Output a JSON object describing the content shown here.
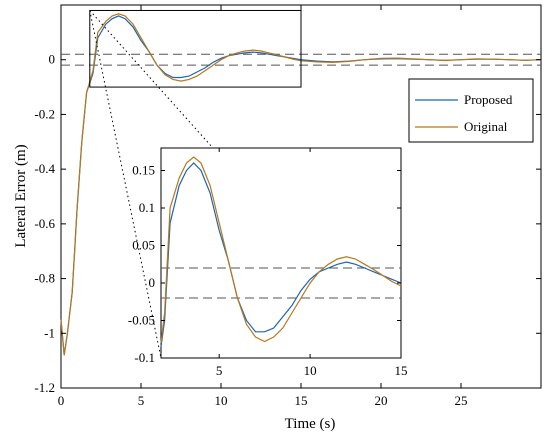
{
  "chart_data": {
    "type": "line",
    "xlabel": "Time (s)",
    "ylabel": "Lateral Error (m)",
    "xlim": [
      0,
      30
    ],
    "ylim": [
      -1.2,
      0.2
    ],
    "x_ticks": [
      "0",
      "5",
      "10",
      "15",
      "20",
      "25"
    ],
    "y_ticks": [
      "0",
      "-0.2",
      "-0.4",
      "-0.6",
      "-0.8",
      "-1",
      "-1.2"
    ],
    "reference_lines": [
      0.02,
      -0.02
    ],
    "legend": {
      "position": "top-right",
      "entries": [
        "Proposed",
        "Original"
      ]
    },
    "series": [
      {
        "name": "Proposed",
        "color": "#1f63b5",
        "points": [
          [
            0,
            -0.95
          ],
          [
            0.2,
            -1.08
          ],
          [
            0.4,
            -1.0
          ],
          [
            0.7,
            -0.85
          ],
          [
            1.0,
            -0.55
          ],
          [
            1.3,
            -0.3
          ],
          [
            1.6,
            -0.12
          ],
          [
            2.0,
            -0.05
          ],
          [
            2.3,
            0.08
          ],
          [
            2.8,
            0.13
          ],
          [
            3.2,
            0.15
          ],
          [
            3.6,
            0.16
          ],
          [
            4.0,
            0.15
          ],
          [
            4.5,
            0.12
          ],
          [
            5.0,
            0.07
          ],
          [
            5.5,
            0.03
          ],
          [
            6.0,
            -0.02
          ],
          [
            6.5,
            -0.05
          ],
          [
            7.0,
            -0.065
          ],
          [
            7.5,
            -0.065
          ],
          [
            8.0,
            -0.06
          ],
          [
            8.5,
            -0.045
          ],
          [
            9.0,
            -0.03
          ],
          [
            9.5,
            -0.01
          ],
          [
            10.0,
            0.005
          ],
          [
            10.5,
            0.015
          ],
          [
            11.0,
            0.02
          ],
          [
            11.5,
            0.025
          ],
          [
            12.0,
            0.028
          ],
          [
            12.5,
            0.025
          ],
          [
            13.0,
            0.02
          ],
          [
            13.5,
            0.015
          ],
          [
            14.0,
            0.01
          ],
          [
            14.5,
            0.005
          ],
          [
            15.0,
            0.0
          ],
          [
            16.0,
            -0.005
          ],
          [
            17.0,
            -0.008
          ],
          [
            18.0,
            -0.005
          ],
          [
            19.0,
            0.0
          ],
          [
            20.0,
            0.003
          ],
          [
            21.0,
            0.004
          ],
          [
            22.0,
            0.002
          ],
          [
            23.0,
            0.0
          ],
          [
            24.0,
            -0.002
          ],
          [
            25.0,
            0.0
          ],
          [
            26.0,
            0.002
          ],
          [
            27.0,
            0.002
          ],
          [
            28.0,
            0.0
          ],
          [
            29.0,
            -0.002
          ],
          [
            30.0,
            0.0
          ]
        ]
      },
      {
        "name": "Original",
        "color": "#b5781b",
        "points": [
          [
            0,
            -0.95
          ],
          [
            0.2,
            -1.08
          ],
          [
            0.4,
            -1.0
          ],
          [
            0.7,
            -0.85
          ],
          [
            1.0,
            -0.55
          ],
          [
            1.3,
            -0.3
          ],
          [
            1.6,
            -0.12
          ],
          [
            2.0,
            -0.04
          ],
          [
            2.3,
            0.1
          ],
          [
            2.8,
            0.14
          ],
          [
            3.2,
            0.16
          ],
          [
            3.6,
            0.168
          ],
          [
            4.0,
            0.16
          ],
          [
            4.5,
            0.13
          ],
          [
            5.0,
            0.08
          ],
          [
            5.5,
            0.03
          ],
          [
            6.0,
            -0.02
          ],
          [
            6.5,
            -0.055
          ],
          [
            7.0,
            -0.072
          ],
          [
            7.5,
            -0.078
          ],
          [
            8.0,
            -0.072
          ],
          [
            8.5,
            -0.06
          ],
          [
            9.0,
            -0.04
          ],
          [
            9.5,
            -0.02
          ],
          [
            10.0,
            0.0
          ],
          [
            10.5,
            0.015
          ],
          [
            11.0,
            0.025
          ],
          [
            11.5,
            0.032
          ],
          [
            12.0,
            0.035
          ],
          [
            12.5,
            0.032
          ],
          [
            13.0,
            0.025
          ],
          [
            13.5,
            0.018
          ],
          [
            14.0,
            0.01
          ],
          [
            14.5,
            0.002
          ],
          [
            15.0,
            -0.004
          ],
          [
            16.0,
            -0.008
          ],
          [
            17.0,
            -0.01
          ],
          [
            18.0,
            -0.006
          ],
          [
            19.0,
            0.0
          ],
          [
            20.0,
            0.005
          ],
          [
            21.0,
            0.006
          ],
          [
            22.0,
            0.003
          ],
          [
            23.0,
            0.0
          ],
          [
            24.0,
            -0.003
          ],
          [
            25.0,
            0.0
          ],
          [
            26.0,
            0.003
          ],
          [
            27.0,
            0.002
          ],
          [
            28.0,
            0.0
          ],
          [
            29.0,
            -0.002
          ],
          [
            30.0,
            0.0
          ]
        ]
      }
    ],
    "inset": {
      "xlim": [
        1.8,
        15
      ],
      "ylim": [
        -0.1,
        0.18
      ],
      "x_ticks": [
        "5",
        "10",
        "15"
      ],
      "y_ticks": [
        "0.15",
        "0.1",
        "0.05",
        "0",
        "-0.05",
        "-0.1"
      ]
    },
    "zoom_box": {
      "xlim": [
        1.8,
        15
      ],
      "ylim": [
        -0.1,
        0.18
      ]
    }
  }
}
